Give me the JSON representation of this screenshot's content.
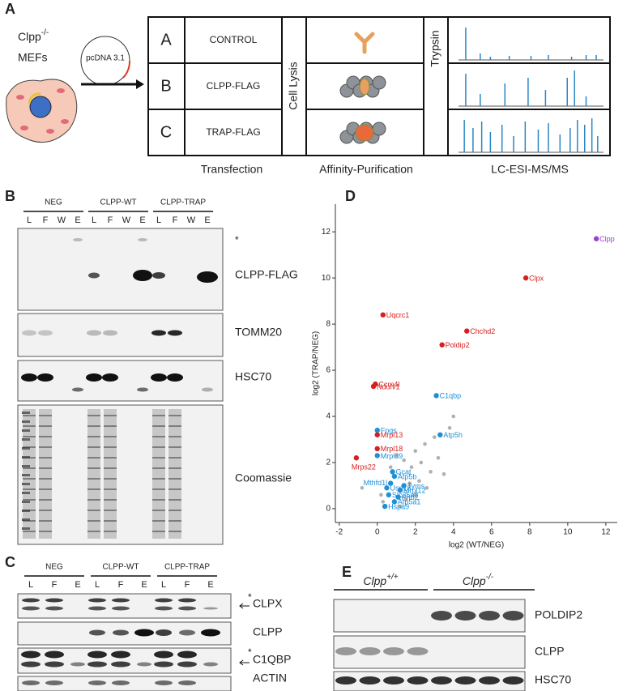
{
  "panel_a": {
    "letter": "A",
    "cells": {
      "name": "Clpp",
      "genotype": "-/-",
      "type": "MEFs"
    },
    "plasmid": "pcDNA 3.1",
    "rows": [
      {
        "letter": "A",
        "construct": "CONTROL"
      },
      {
        "letter": "B",
        "construct": "CLPP-FLAG"
      },
      {
        "letter": "C",
        "construct": "TRAP-FLAG"
      }
    ],
    "steps": [
      "Cell Lysis",
      "Trypsin"
    ],
    "stages": [
      "Transfection",
      "Affinity-Purification",
      "LC-ESI-MS/MS"
    ]
  },
  "panel_b": {
    "letter": "B",
    "groups": [
      {
        "name": "NEG",
        "lanes": [
          "L",
          "F",
          "W",
          "E"
        ]
      },
      {
        "name": "CLPP-WT",
        "lanes": [
          "L",
          "F",
          "W",
          "E"
        ]
      },
      {
        "name": "CLPP-TRAP",
        "lanes": [
          "L",
          "F",
          "W",
          "E"
        ]
      }
    ],
    "asterisk": "*",
    "blots": [
      "CLPP-FLAG",
      "TOMM20",
      "HSC70",
      "Coomassie"
    ]
  },
  "chart_data": {
    "type": "scatter",
    "panel": "D",
    "xlabel": "log2 (WT/NEG)",
    "ylabel": "log2 (TRAP/NEG)",
    "xlim": [
      -2.2,
      12.6
    ],
    "ylim": [
      -0.6,
      13.2
    ],
    "xticks": [
      -2,
      0,
      2,
      4,
      6,
      8,
      10,
      12
    ],
    "yticks": [
      0,
      2,
      4,
      6,
      8,
      10,
      12
    ],
    "points": {
      "labels": [
        "Clpp",
        "Clpx",
        "Uqcrc1",
        "Chchd2",
        "Poldip2",
        "Ccrn4l",
        "Ndufv1",
        "C1qbp",
        "Atp5h",
        "Fpgs",
        "Mrpl13",
        "Mrpl18",
        "Mrpl39",
        "Mrps22",
        "Gcat",
        "Atp5b",
        "Mthfd1l",
        "Tyms",
        "Usp18",
        "Mrpl12",
        "Slc25a3",
        "Phb2",
        "Atp5a1",
        "Hspa9"
      ],
      "x": [
        11.5,
        7.8,
        0.3,
        4.7,
        3.4,
        -0.1,
        -0.2,
        3.1,
        3.3,
        0,
        0,
        0,
        0,
        -1.1,
        0.8,
        0.9,
        0.7,
        1.4,
        0.5,
        1.2,
        0.6,
        1.1,
        0.9,
        0.4
      ],
      "y": [
        11.7,
        10.0,
        8.4,
        7.7,
        7.1,
        5.4,
        5.3,
        4.9,
        3.2,
        3.4,
        3.2,
        2.6,
        2.3,
        2.2,
        1.6,
        1.4,
        1.1,
        1.0,
        0.9,
        0.8,
        0.6,
        0.5,
        0.3,
        0.1
      ],
      "colors": [
        "#9b3fd6",
        "#d62020",
        "#d62020",
        "#d62020",
        "#d62020",
        "#d62020",
        "#d62020",
        "#1f8fd6",
        "#1f8fd6",
        "#1f8fd6",
        "#d62020",
        "#d62020",
        "#1f8fd6",
        "#d62020",
        "#1f8fd6",
        "#1f8fd6",
        "#1f8fd6",
        "#1f8fd6",
        "#1f8fd6",
        "#1f8fd6",
        "#1f8fd6",
        "#1f8fd6",
        "#1f8fd6",
        "#1f8fd6"
      ]
    },
    "background": {
      "color": "#b0b0b0",
      "x": [
        4,
        3.8,
        3,
        2.5,
        2,
        2.3,
        1.8,
        2.8,
        3.2,
        1.5,
        2.2,
        1.2,
        0.2,
        0.7,
        1,
        1.7,
        2.6,
        3.5,
        -0.8,
        0.3,
        1.4,
        2
      ],
      "y": [
        4,
        3.5,
        3.1,
        2.8,
        2.5,
        2,
        1.8,
        1.6,
        2.2,
        0.4,
        1.2,
        0.1,
        0.6,
        1.8,
        2.3,
        1.1,
        0.9,
        1.5,
        0.9,
        0.3,
        2.1,
        0.6
      ]
    }
  },
  "panel_c": {
    "letter": "C",
    "groups": [
      {
        "name": "NEG",
        "lanes": [
          "L",
          "F",
          "E"
        ]
      },
      {
        "name": "CLPP-WT",
        "lanes": [
          "L",
          "F",
          "E"
        ]
      },
      {
        "name": "CLPP-TRAP",
        "lanes": [
          "L",
          "F",
          "E"
        ]
      }
    ],
    "blots": [
      "CLPX",
      "CLPP",
      "C1QBP",
      "ACTIN"
    ],
    "asterisks": [
      "*",
      "*"
    ]
  },
  "panel_e": {
    "letter": "E",
    "genotypes": [
      {
        "name": "Clpp",
        "sup": "+/+"
      },
      {
        "name": "Clpp",
        "sup": "-/-"
      }
    ],
    "blots": [
      "POLDIP2",
      "CLPP",
      "HSC70"
    ]
  }
}
